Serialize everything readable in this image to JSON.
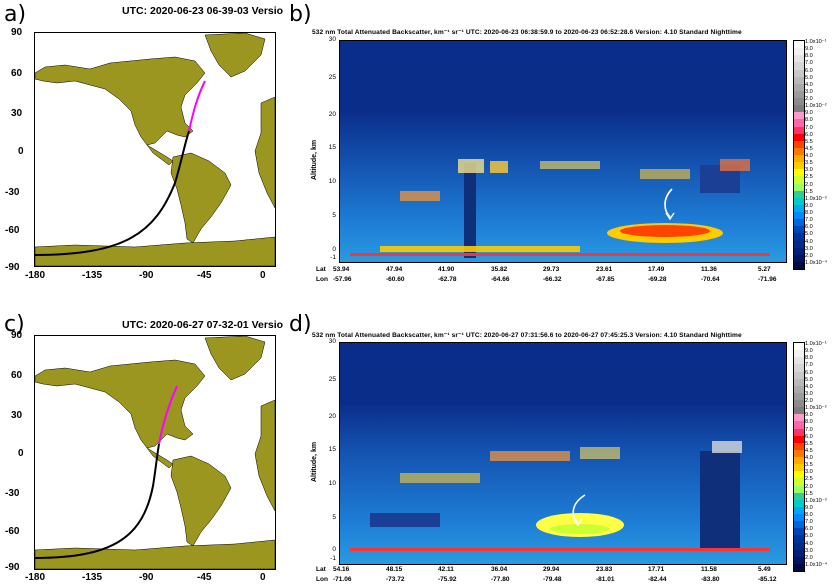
{
  "panels": [
    {
      "letter": "a)",
      "map_title": "UTC: 2020-06-23  06-39-03   Versio",
      "y_ticks": [
        "90",
        "60",
        "30",
        "0",
        "-30",
        "-60",
        "-90"
      ],
      "x_ticks": [
        "-180",
        "-135",
        "-90",
        "-45",
        "0"
      ]
    },
    {
      "letter": "c)",
      "map_title": "UTC: 2020-06-27  07-32-01   Versio",
      "y_ticks": [
        "90",
        "60",
        "30",
        "0",
        "-30",
        "-60",
        "-90"
      ],
      "x_ticks": [
        "-180",
        "-135",
        "-90",
        "-45",
        "0"
      ]
    }
  ],
  "curtains": [
    {
      "letter": "b)",
      "title": "532 nm Total Attenuated Backscatter, km⁻¹ sr⁻¹    UTC:  2020-06-23 06:38:59.9  to  2020-06-23 06:52:28.6   Version: 4.10  Standard  Nighttime",
      "y_label": "Altitude, km",
      "y_ticks": [
        "30",
        "25",
        "20",
        "15",
        "10",
        "5",
        "0",
        "-1"
      ],
      "lat_label": "Lat",
      "lon_label": "Lon",
      "lat": [
        "53.94",
        "47.94",
        "41.90",
        "35.82",
        "29.73",
        "23.61",
        "17.49",
        "11.36",
        "5.27"
      ],
      "lon": [
        "-57.96",
        "-60.60",
        "-62.78",
        "-64.66",
        "-66.32",
        "-67.85",
        "-69.28",
        "-70.64",
        "-71.96"
      ]
    },
    {
      "letter": "d)",
      "title": "532 nm Total Attenuated Backscatter, km⁻¹ sr⁻¹    UTC:  2020-06-27 07:31:56.6  to  2020-06-27 07:45:25.3   Version: 4.10  Standard  Nighttime",
      "y_label": "Altitude, km",
      "y_ticks": [
        "30",
        "25",
        "20",
        "15",
        "10",
        "5",
        "0",
        "-1"
      ],
      "lat_label": "Lat",
      "lon_label": "Lon",
      "lat": [
        "54.16",
        "48.15",
        "42.11",
        "36.04",
        "29.94",
        "23.83",
        "17.71",
        "11.58",
        "5.49"
      ],
      "lon": [
        "-71.06",
        "-73.72",
        "-75.92",
        "-77.80",
        "-79.48",
        "-81.01",
        "-82.44",
        "-83.80",
        "-85.12"
      ]
    }
  ],
  "colorbar": {
    "labels": [
      "1.0x10⁻¹",
      "9.0",
      "8.0",
      "7.0",
      "6.0",
      "5.0",
      "4.0",
      "3.0",
      "2.0",
      "1.0x10⁻²",
      "9.0",
      "8.0",
      "7.0",
      "6.0",
      "5.5",
      "4.5",
      "4.0",
      "3.5",
      "3.0",
      "2.5",
      "2.0",
      "1.5",
      "1.0x10⁻³",
      "9.0",
      "8.0",
      "7.0",
      "6.0",
      "5.0",
      "4.0",
      "3.0",
      "2.0",
      "1.0x10⁻⁴"
    ],
    "colors": [
      "#ffffff",
      "#f2f2f2",
      "#e4e4e4",
      "#d6d6d6",
      "#c8c8c8",
      "#b9b9b9",
      "#aaaaaa",
      "#9b9b9b",
      "#8c8c8c",
      "#7d7d7d",
      "#ff99cc",
      "#ff66aa",
      "#ff3366",
      "#ff0000",
      "#ff4400",
      "#ff7700",
      "#ffaa00",
      "#ffcc00",
      "#ffff00",
      "#ccff33",
      "#99ff66",
      "#33cc99",
      "#00cccc",
      "#00aaee",
      "#0088ff",
      "#0066dd",
      "#0044bb",
      "#003399",
      "#002b88",
      "#001f77",
      "#001560",
      "#000b44"
    ]
  },
  "colors": {
    "land": "#9b9620",
    "ocean": "#ffffff",
    "track_night": "#000000",
    "track_segment": "#ff00ff",
    "curtain_bg": "#0b2d8a",
    "noise": "#1c73c9"
  }
}
